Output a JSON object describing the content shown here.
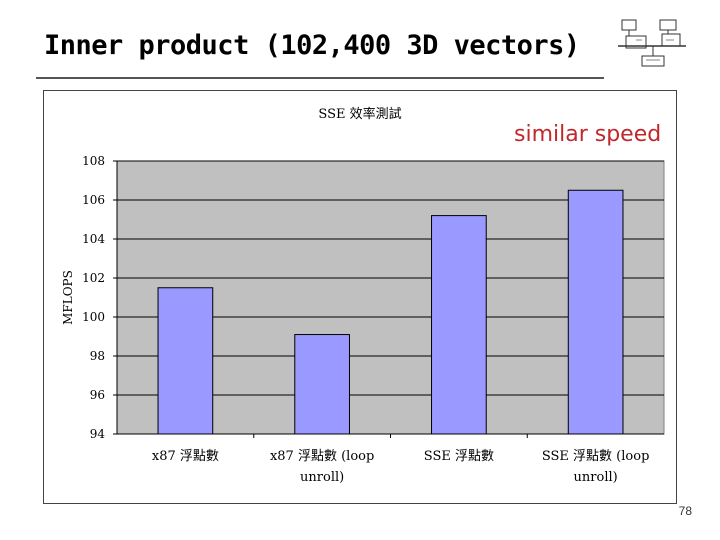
{
  "slide": {
    "title": "Inner product (102,400 3D vectors)",
    "annotation": "similar speed",
    "page_number": "78"
  },
  "colors": {
    "bar_fill": "#9999ff",
    "plot_bg": "#c0c0c0",
    "annotation": "#c0282c"
  },
  "chart_data": {
    "type": "bar",
    "title": "SSE 效率測試",
    "ylabel": "MFLOPS",
    "xlabel": "",
    "ylim": [
      94,
      108
    ],
    "yticks": [
      94,
      96,
      98,
      100,
      102,
      104,
      106,
      108
    ],
    "grid": true,
    "categories": [
      [
        "x87 浮點數"
      ],
      [
        "x87 浮點數 (loop",
        "unroll)"
      ],
      [
        "SSE 浮點數"
      ],
      [
        "SSE 浮點數 (loop",
        "unroll)"
      ]
    ],
    "values": [
      101.5,
      99.1,
      105.2,
      106.5
    ]
  }
}
